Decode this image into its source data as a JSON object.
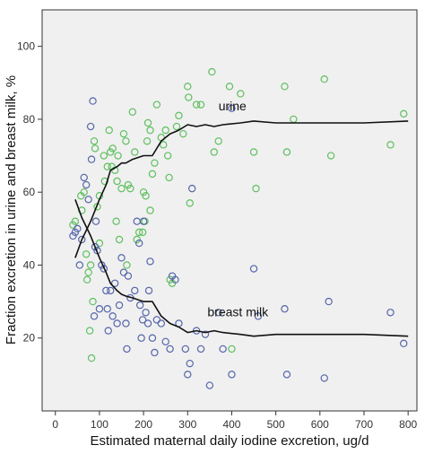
{
  "chart_data": {
    "type": "scatter",
    "xlabel": "Estimated maternal daily iodine excretion, ug/d",
    "ylabel": "Fraction excretion in urine and breast milk, %",
    "xlim": [
      -30,
      820
    ],
    "ylim": [
      0,
      110
    ],
    "xticks": [
      0,
      100,
      200,
      300,
      400,
      500,
      600,
      700,
      800
    ],
    "yticks": [
      20,
      40,
      60,
      80,
      100
    ],
    "grid": false,
    "background": "#f0f0f0",
    "series": [
      {
        "marker": "circle",
        "color": "#5fbf5f",
        "points": [
          [
            40,
            51
          ],
          [
            45,
            52
          ],
          [
            58,
            59
          ],
          [
            60,
            55
          ],
          [
            65,
            60
          ],
          [
            70,
            43
          ],
          [
            72,
            36
          ],
          [
            75,
            38
          ],
          [
            78,
            22
          ],
          [
            80,
            40
          ],
          [
            82,
            14.5
          ],
          [
            85,
            30
          ],
          [
            88,
            74
          ],
          [
            90,
            72
          ],
          [
            95,
            56
          ],
          [
            100,
            59
          ],
          [
            100,
            46
          ],
          [
            110,
            70
          ],
          [
            112,
            63
          ],
          [
            118,
            67
          ],
          [
            122,
            77
          ],
          [
            125,
            71
          ],
          [
            128,
            67
          ],
          [
            130,
            72
          ],
          [
            135,
            66
          ],
          [
            138,
            52
          ],
          [
            140,
            63
          ],
          [
            142,
            70
          ],
          [
            145,
            47
          ],
          [
            150,
            61
          ],
          [
            155,
            76
          ],
          [
            160,
            74
          ],
          [
            162,
            40
          ],
          [
            165,
            62
          ],
          [
            170,
            61
          ],
          [
            175,
            82
          ],
          [
            180,
            71
          ],
          [
            185,
            47
          ],
          [
            190,
            49
          ],
          [
            198,
            49
          ],
          [
            200,
            60
          ],
          [
            203,
            52
          ],
          [
            205,
            59
          ],
          [
            208,
            74
          ],
          [
            210,
            79
          ],
          [
            215,
            77
          ],
          [
            215,
            55
          ],
          [
            220,
            65
          ],
          [
            225,
            68
          ],
          [
            230,
            84
          ],
          [
            240,
            75
          ],
          [
            245,
            73
          ],
          [
            250,
            77
          ],
          [
            255,
            70
          ],
          [
            258,
            64
          ],
          [
            260,
            36
          ],
          [
            265,
            35
          ],
          [
            275,
            78
          ],
          [
            280,
            81
          ],
          [
            290,
            76
          ],
          [
            300,
            89
          ],
          [
            302,
            86
          ],
          [
            305,
            57
          ],
          [
            320,
            84
          ],
          [
            330,
            84
          ],
          [
            355,
            93
          ],
          [
            360,
            71
          ],
          [
            370,
            74
          ],
          [
            395,
            89
          ],
          [
            400,
            17
          ],
          [
            420,
            87
          ],
          [
            450,
            71
          ],
          [
            455,
            61
          ],
          [
            520,
            89
          ],
          [
            525,
            71
          ],
          [
            540,
            80
          ],
          [
            610,
            91
          ],
          [
            625,
            70
          ],
          [
            760,
            73
          ],
          [
            790,
            81.5
          ]
        ]
      },
      {
        "marker": "circle",
        "color": "#5566aa",
        "points": [
          [
            40,
            48
          ],
          [
            45,
            49
          ],
          [
            50,
            50
          ],
          [
            55,
            40
          ],
          [
            60,
            47
          ],
          [
            65,
            64
          ],
          [
            70,
            62
          ],
          [
            75,
            58
          ],
          [
            80,
            78
          ],
          [
            82,
            69
          ],
          [
            85,
            85
          ],
          [
            88,
            26
          ],
          [
            90,
            45
          ],
          [
            92,
            52
          ],
          [
            95,
            44
          ],
          [
            100,
            28
          ],
          [
            105,
            40
          ],
          [
            110,
            39
          ],
          [
            115,
            33
          ],
          [
            118,
            28
          ],
          [
            120,
            22
          ],
          [
            125,
            33
          ],
          [
            130,
            26
          ],
          [
            135,
            35
          ],
          [
            140,
            24
          ],
          [
            145,
            29
          ],
          [
            150,
            42
          ],
          [
            155,
            38
          ],
          [
            160,
            24
          ],
          [
            162,
            17
          ],
          [
            165,
            37
          ],
          [
            170,
            31
          ],
          [
            180,
            33
          ],
          [
            185,
            52
          ],
          [
            190,
            46
          ],
          [
            192,
            29
          ],
          [
            195,
            20
          ],
          [
            198,
            25
          ],
          [
            200,
            52
          ],
          [
            205,
            27
          ],
          [
            210,
            24
          ],
          [
            212,
            33
          ],
          [
            215,
            41
          ],
          [
            220,
            20
          ],
          [
            225,
            16
          ],
          [
            230,
            25
          ],
          [
            240,
            24
          ],
          [
            250,
            19
          ],
          [
            260,
            17
          ],
          [
            265,
            37
          ],
          [
            272,
            36
          ],
          [
            280,
            24
          ],
          [
            295,
            17
          ],
          [
            300,
            10
          ],
          [
            305,
            13
          ],
          [
            310,
            61
          ],
          [
            320,
            22
          ],
          [
            330,
            17
          ],
          [
            340,
            21
          ],
          [
            350,
            7
          ],
          [
            370,
            27
          ],
          [
            380,
            17
          ],
          [
            400,
            83
          ],
          [
            400,
            10
          ],
          [
            450,
            39
          ],
          [
            460,
            26
          ],
          [
            520,
            28
          ],
          [
            525,
            10
          ],
          [
            610,
            9
          ],
          [
            620,
            30
          ],
          [
            760,
            27
          ],
          [
            790,
            18.5
          ]
        ]
      }
    ],
    "curves": [
      {
        "name": "urine",
        "label": "urine",
        "color": "#111111",
        "points": [
          [
            45,
            42
          ],
          [
            60,
            47
          ],
          [
            80,
            52
          ],
          [
            100,
            58
          ],
          [
            115,
            62
          ],
          [
            125,
            66
          ],
          [
            140,
            67
          ],
          [
            150,
            68
          ],
          [
            160,
            68
          ],
          [
            175,
            69
          ],
          [
            200,
            70
          ],
          [
            220,
            70
          ],
          [
            240,
            74
          ],
          [
            260,
            76
          ],
          [
            280,
            77
          ],
          [
            300,
            78.5
          ],
          [
            320,
            78
          ],
          [
            340,
            78.5
          ],
          [
            360,
            78
          ],
          [
            380,
            78.5
          ],
          [
            420,
            79
          ],
          [
            450,
            79.5
          ],
          [
            500,
            79
          ],
          [
            550,
            79
          ],
          [
            600,
            79
          ],
          [
            700,
            79
          ],
          [
            800,
            79.5
          ]
        ]
      },
      {
        "name": "breast milk",
        "label": "breast milk",
        "color": "#111111",
        "points": [
          [
            45,
            58
          ],
          [
            60,
            53
          ],
          [
            80,
            48
          ],
          [
            100,
            42
          ],
          [
            115,
            38
          ],
          [
            125,
            35
          ],
          [
            140,
            33
          ],
          [
            150,
            32
          ],
          [
            160,
            31.5
          ],
          [
            175,
            31
          ],
          [
            200,
            30
          ],
          [
            220,
            30
          ],
          [
            240,
            26
          ],
          [
            260,
            24
          ],
          [
            280,
            23
          ],
          [
            300,
            21.5
          ],
          [
            320,
            22
          ],
          [
            340,
            21.5
          ],
          [
            360,
            22
          ],
          [
            380,
            21.5
          ],
          [
            420,
            21
          ],
          [
            450,
            20.5
          ],
          [
            500,
            21
          ],
          [
            550,
            21
          ],
          [
            600,
            21
          ],
          [
            700,
            21
          ],
          [
            800,
            20.5
          ]
        ]
      }
    ]
  }
}
